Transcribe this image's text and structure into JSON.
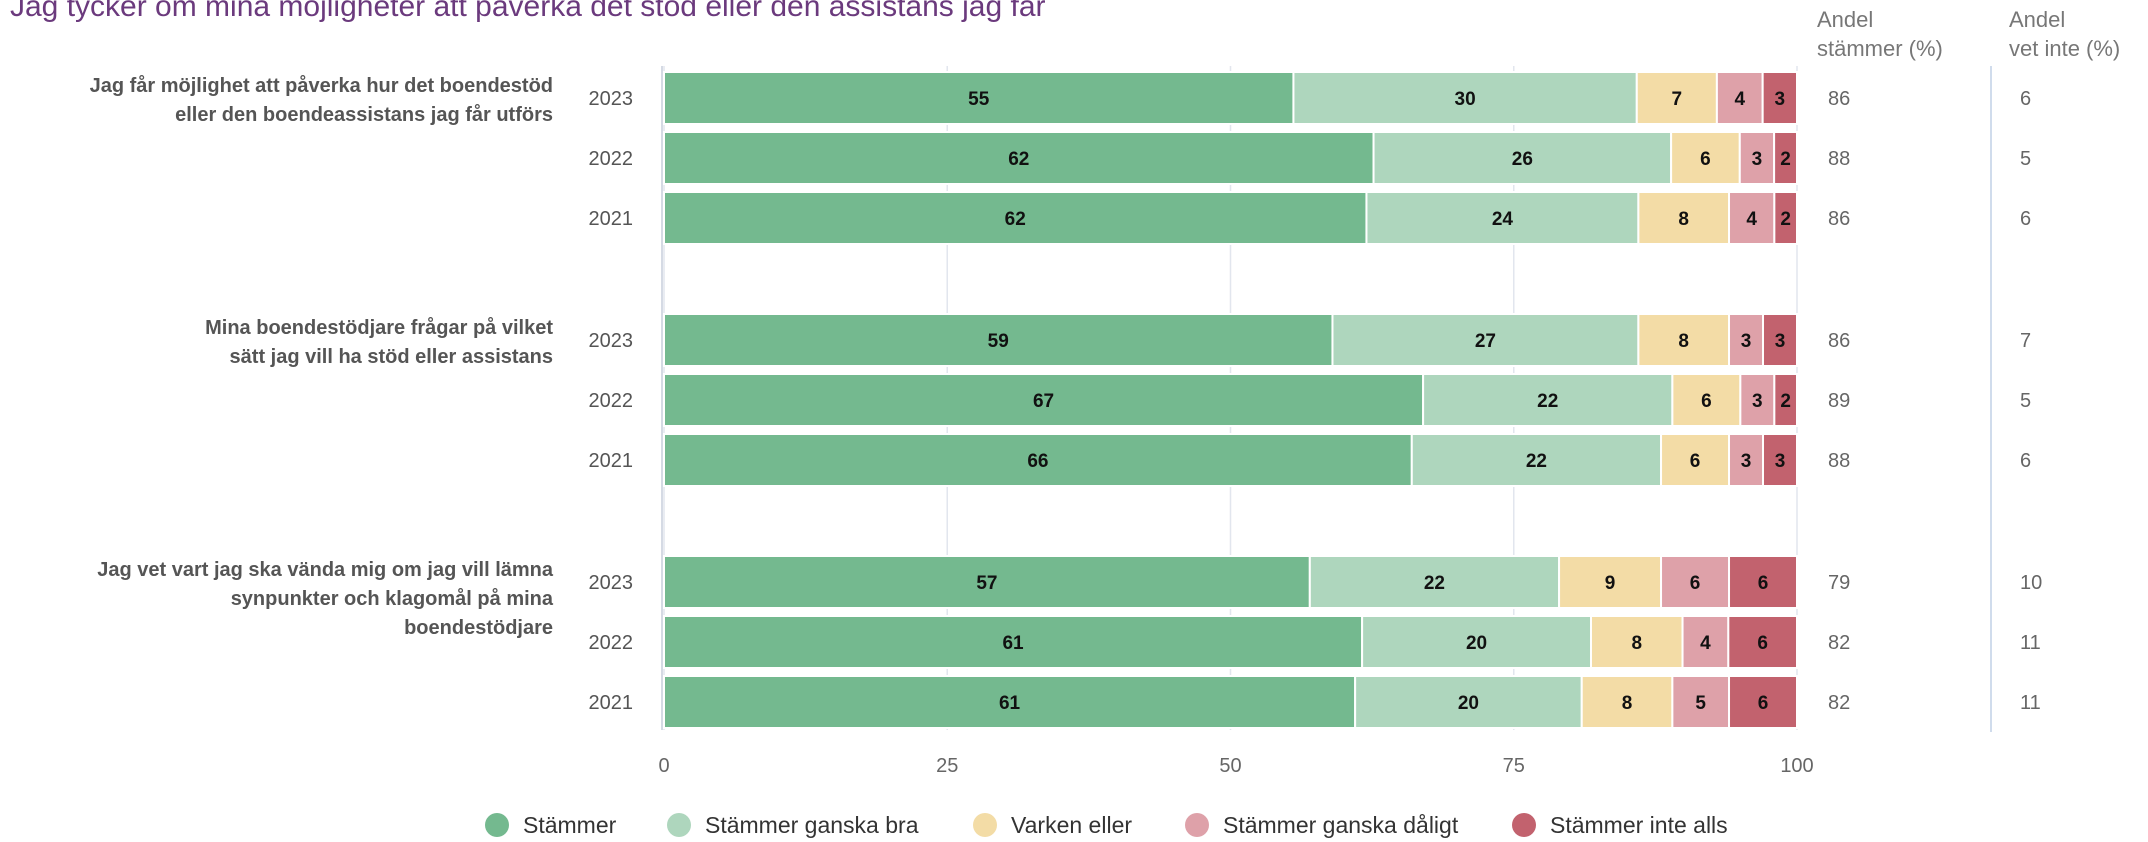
{
  "chart_data": {
    "type": "bar",
    "orientation": "horizontal",
    "stacked": true,
    "title": "Jag tycker om mina möjligheter att påverka det stöd eller den assistans jag får",
    "xlim": [
      0,
      100
    ],
    "xticks": [
      "0",
      "25",
      "50",
      "75",
      "100"
    ],
    "grid": true,
    "legend_position": "bottom",
    "series": [
      {
        "name": "Stämmer",
        "color": "#74b98f"
      },
      {
        "name": "Stämmer ganska bra",
        "color": "#aed6bd"
      },
      {
        "name": "Varken eller",
        "color": "#f3dca6"
      },
      {
        "name": "Stämmer ganska dåligt",
        "color": "#dea1a9"
      },
      {
        "name": "Stämmer inte alls",
        "color": "#c2626e"
      }
    ],
    "side_columns": [
      {
        "header": [
          "Andel",
          "stämmer (%)"
        ]
      },
      {
        "header": [
          "Andel",
          "vet inte (%)"
        ]
      }
    ],
    "groups": [
      {
        "label": [
          "Jag får möjlighet att påverka hur det boendestöd",
          "eller den boendeassistans jag får utförs"
        ],
        "rows": [
          {
            "year": "2023",
            "values": [
              55,
              30,
              7,
              4,
              3
            ],
            "andel_stammer": "86",
            "andel_vet_inte": "6"
          },
          {
            "year": "2022",
            "values": [
              62,
              26,
              6,
              3,
              2
            ],
            "andel_stammer": "88",
            "andel_vet_inte": "5"
          },
          {
            "year": "2021",
            "values": [
              62,
              24,
              8,
              4,
              2
            ],
            "andel_stammer": "86",
            "andel_vet_inte": "6"
          }
        ]
      },
      {
        "label": [
          "Mina boendestödjare frågar på vilket",
          "sätt jag vill ha stöd eller assistans"
        ],
        "rows": [
          {
            "year": "2023",
            "values": [
              59,
              27,
              8,
              3,
              3
            ],
            "andel_stammer": "86",
            "andel_vet_inte": "7"
          },
          {
            "year": "2022",
            "values": [
              67,
              22,
              6,
              3,
              2
            ],
            "andel_stammer": "89",
            "andel_vet_inte": "5"
          },
          {
            "year": "2021",
            "values": [
              66,
              22,
              6,
              3,
              3
            ],
            "andel_stammer": "88",
            "andel_vet_inte": "6"
          }
        ]
      },
      {
        "label": [
          "Jag vet vart jag ska vända mig om jag vill lämna",
          "synpunkter och klagomål på mina",
          "boendestödjare"
        ],
        "rows": [
          {
            "year": "2023",
            "values": [
              57,
              22,
              9,
              6,
              6
            ],
            "andel_stammer": "79",
            "andel_vet_inte": "10"
          },
          {
            "year": "2022",
            "values": [
              61,
              20,
              8,
              4,
              6
            ],
            "andel_stammer": "82",
            "andel_vet_inte": "11"
          },
          {
            "year": "2021",
            "values": [
              61,
              20,
              8,
              5,
              6
            ],
            "andel_stammer": "82",
            "andel_vet_inte": "11"
          }
        ]
      }
    ]
  }
}
